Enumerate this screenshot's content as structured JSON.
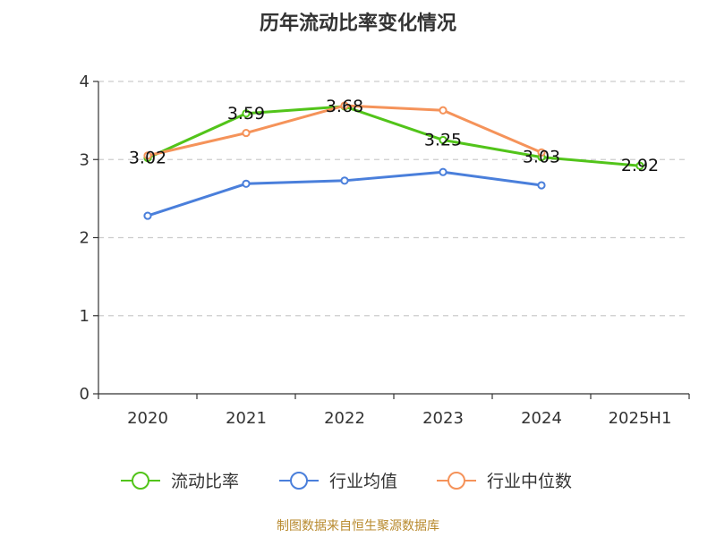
{
  "chart_data": {
    "type": "line",
    "title": "历年流动比率变化情况",
    "categories": [
      "2020",
      "2021",
      "2022",
      "2023",
      "2024",
      "2025H1"
    ],
    "ylim": [
      0,
      4
    ],
    "yticks": [
      0,
      1,
      2,
      3,
      4
    ],
    "grid": "horizontal-dashed",
    "legend_position": "bottom",
    "series": [
      {
        "name": "流动比率",
        "color": "#52c41a",
        "values": [
          3.02,
          3.59,
          3.68,
          3.25,
          3.03,
          2.92
        ],
        "show_labels": true
      },
      {
        "name": "行业均值",
        "color": "#4a7fdb",
        "values": [
          2.28,
          2.69,
          2.73,
          2.84,
          2.67,
          null
        ],
        "show_labels": false
      },
      {
        "name": "行业中位数",
        "color": "#f5935a",
        "values": [
          3.05,
          3.34,
          3.69,
          3.63,
          3.09,
          null
        ],
        "show_labels": false
      }
    ],
    "source": "制图数据来自恒生聚源数据库"
  }
}
